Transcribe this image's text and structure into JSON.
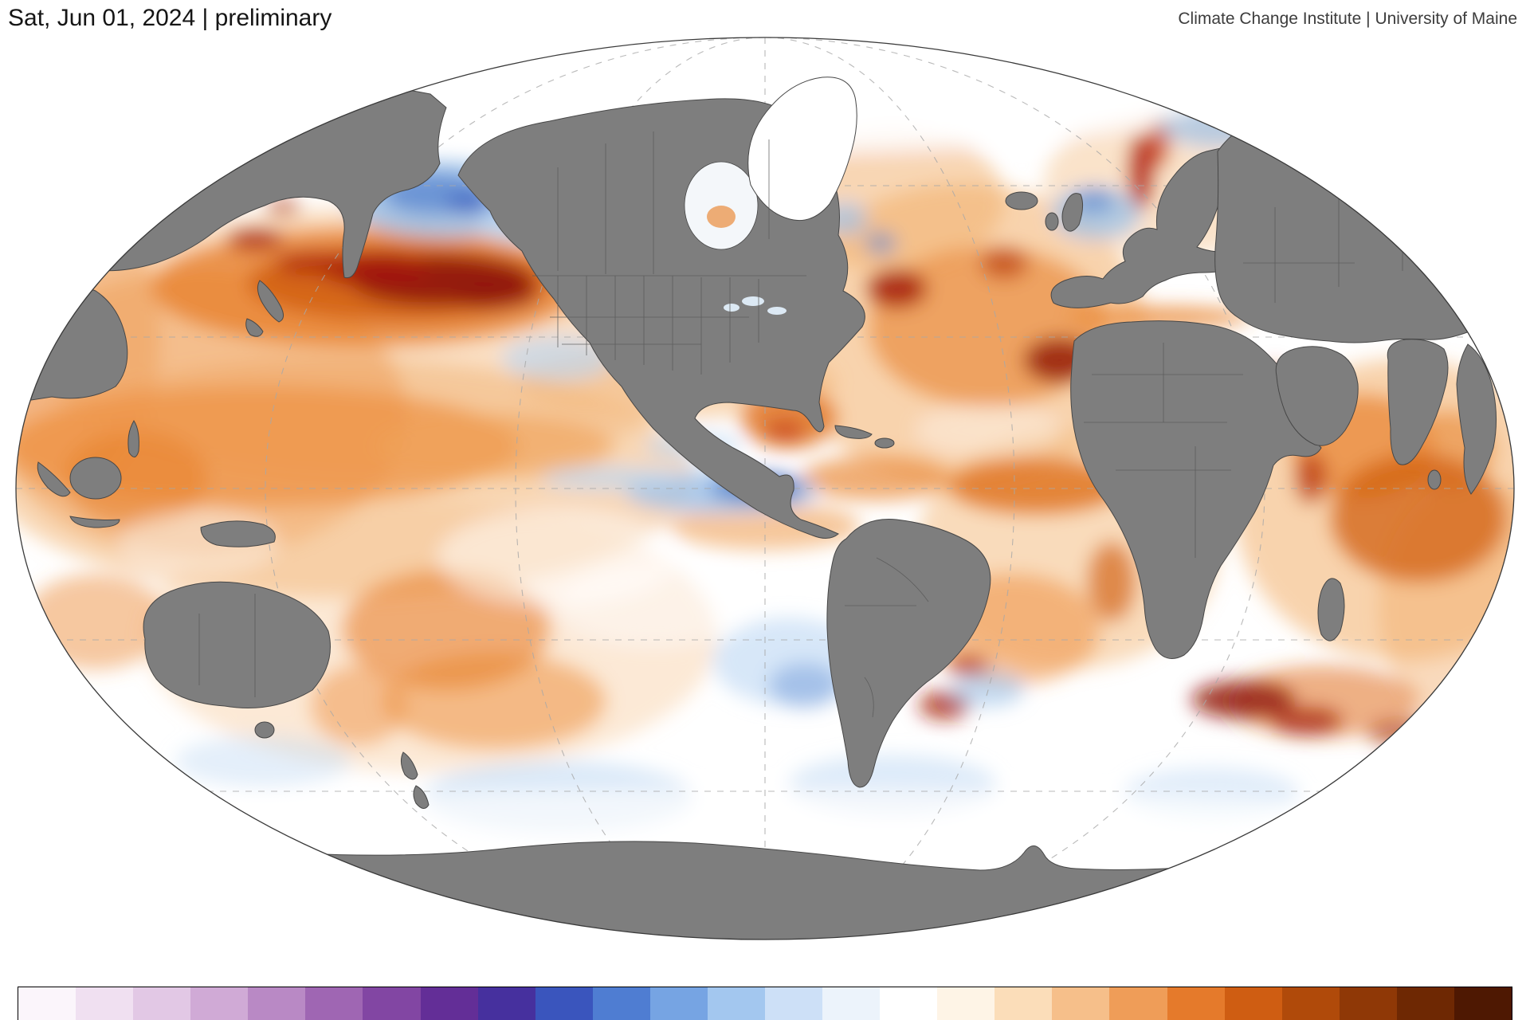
{
  "header": {
    "date_label": "Sat, Jun 01, 2024 | preliminary",
    "attribution": "Climate Change Institute | University of Maine"
  },
  "map": {
    "land_color": "#7e7e7e",
    "coast_color": "#474747",
    "ocean_base_color": "#ffffff",
    "graticule_color": "#a8a8a8",
    "outline_color": "#3a3a3a"
  },
  "colorbar": {
    "colors": [
      "#fbf5fb",
      "#f0e0f1",
      "#e2c8e5",
      "#d0aad6",
      "#b989c5",
      "#9f66b3",
      "#8246a3",
      "#632e97",
      "#46309e",
      "#3a55bd",
      "#4f7dd2",
      "#76a4e3",
      "#a3c7ef",
      "#cde0f7",
      "#ecf3fb",
      "#ffffff",
      "#fef4e6",
      "#fbddb9",
      "#f6bf8a",
      "#ef9d58",
      "#e57a2b",
      "#cf5d12",
      "#b04a0a",
      "#8f3806",
      "#6e2803",
      "#4e1802"
    ]
  }
}
